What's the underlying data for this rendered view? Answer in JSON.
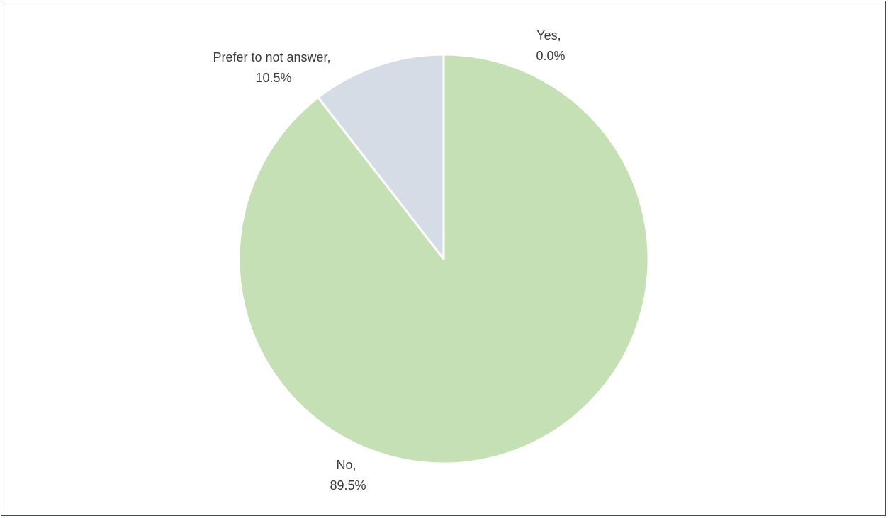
{
  "chart_data": {
    "type": "pie",
    "title": "",
    "start_angle_deg": 0,
    "direction": "clockwise",
    "slices": [
      {
        "label": "Yes",
        "value": 0.0,
        "display": "0.0%",
        "color": "#c5e0b4"
      },
      {
        "label": "No",
        "value": 89.5,
        "display": "89.5%",
        "color": "#c5e0b4"
      },
      {
        "label": "Prefer to not answer",
        "value": 10.5,
        "display": "10.5%",
        "color": "#d6dce5"
      }
    ],
    "slice_border_color": "#ffffff",
    "frame_border_color": "#3d4a5c"
  }
}
